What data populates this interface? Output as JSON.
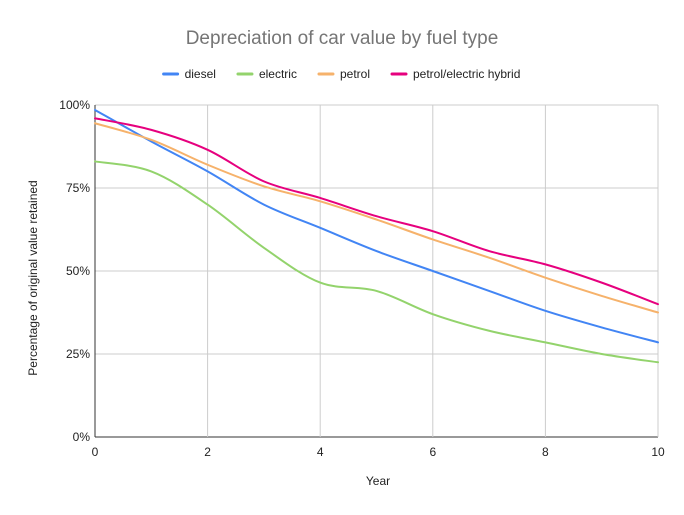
{
  "chart_data": {
    "type": "line",
    "title": "Depreciation of car value by fuel type",
    "xlabel": "Year",
    "ylabel": "Percentage of original value retained",
    "xlim": [
      0,
      10
    ],
    "ylim": [
      0,
      100
    ],
    "x_ticks": [
      0,
      2,
      4,
      6,
      8,
      10
    ],
    "y_ticks": [
      {
        "value": 0,
        "label": "0%"
      },
      {
        "value": 25,
        "label": "25%"
      },
      {
        "value": 50,
        "label": "50%"
      },
      {
        "value": 75,
        "label": "75%"
      },
      {
        "value": 100,
        "label": "100%"
      }
    ],
    "grid": true,
    "legend_position": "top",
    "x": [
      0,
      1,
      2,
      3,
      4,
      5,
      6,
      7,
      8,
      9,
      10
    ],
    "series": [
      {
        "name": "diesel",
        "color": "#4285f4",
        "values": [
          98.5,
          89,
          80,
          70,
          63,
          56,
          50,
          44,
          38,
          33,
          28.5
        ]
      },
      {
        "name": "electric",
        "color": "#93d36c",
        "values": [
          83,
          80,
          70,
          57,
          46.5,
          44,
          37,
          32,
          28.5,
          25,
          22.5
        ]
      },
      {
        "name": "petrol",
        "color": "#f6b26b",
        "values": [
          94.5,
          89.5,
          82,
          75.5,
          71,
          65.5,
          59.5,
          54,
          48,
          42.5,
          37.5
        ]
      },
      {
        "name": "petrol/electric hybrid",
        "color": "#e6007e",
        "values": [
          96,
          92.5,
          86.5,
          77,
          72,
          66.5,
          62,
          56,
          52,
          46.5,
          40
        ]
      }
    ]
  }
}
